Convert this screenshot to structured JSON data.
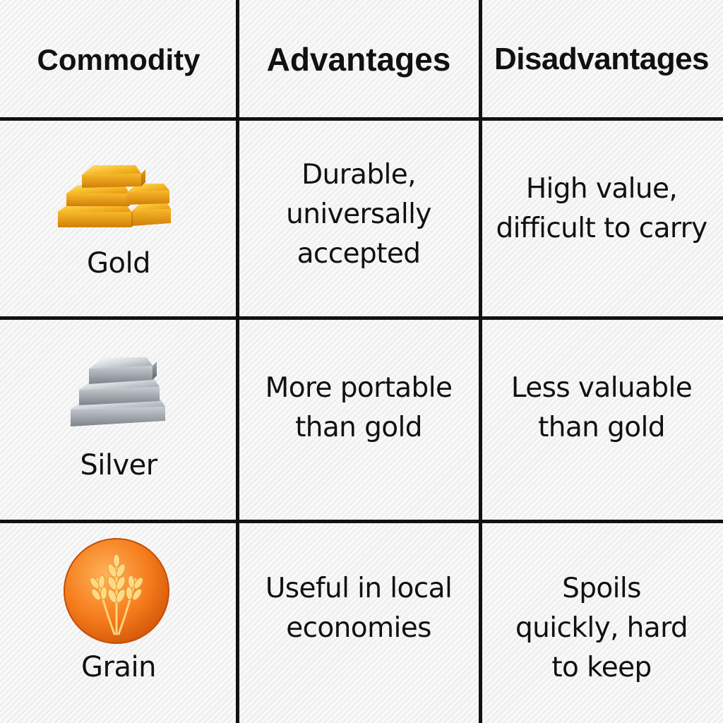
{
  "headers": {
    "commodity": "Commodity",
    "advantages": "Advantages",
    "disadvantages": "Disadvantages"
  },
  "rows": [
    {
      "commodity": "Gold",
      "icon": "gold-bars-icon",
      "advantages": [
        "Durable,",
        "universally",
        "accepted"
      ],
      "disadvantages": [
        "High value,",
        "difficult to carry"
      ]
    },
    {
      "commodity": "Silver",
      "icon": "silver-bars-icon",
      "advantages": [
        "More portable",
        "than gold"
      ],
      "disadvantages": [
        "Less valuable",
        "than gold"
      ]
    },
    {
      "commodity": "Grain",
      "icon": "wheat-icon",
      "advantages": [
        "Useful in local",
        "economies"
      ],
      "disadvantages": [
        "Spoils",
        "quickly, hard",
        "to keep"
      ]
    }
  ],
  "colors": {
    "gold": "#f2b01e",
    "silver": "#b8bcc2",
    "grain_circle": "#f07a1a",
    "grid": "#111111"
  }
}
